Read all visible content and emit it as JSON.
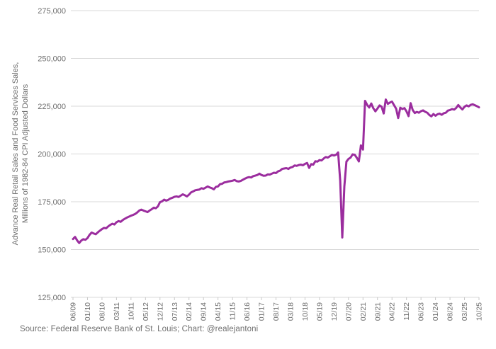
{
  "footer": {
    "source": "Source: Federal Reserve Bank of St. Louis; Chart: @realejantoni"
  },
  "colors": {
    "line": "#9B2D9E",
    "grid": "#D9D9D9",
    "axis_text": "#6E6E6E"
  },
  "chart_data": {
    "type": "line",
    "title": "",
    "ylabel_line1": "Advance Real Retail Sales and Food Services Sales,",
    "ylabel_line2": "Millions of 1982-84 CPI Adjusted Dollars",
    "x_start_month": "2009-06",
    "x_end_month": "2025-10",
    "x_tick_every_months": 7,
    "x_tick_labels": [
      "06/09",
      "01/10",
      "08/10",
      "03/11",
      "10/11",
      "05/12",
      "12/12",
      "07/13",
      "02/14",
      "09/14",
      "04/15",
      "11/15",
      "06/16",
      "01/17",
      "08/17",
      "03/18",
      "10/18",
      "05/19",
      "12/19",
      "07/20",
      "02/21",
      "09/21",
      "04/22",
      "11/22",
      "06/23",
      "01/24",
      "08/24",
      "03/25",
      "10/25"
    ],
    "y_ticks": [
      125000,
      150000,
      175000,
      200000,
      225000,
      250000,
      275000
    ],
    "ylim": [
      125000,
      275000
    ],
    "grid": "horizontal-only",
    "legend": "none",
    "series": [
      {
        "name": "real-retail-and-food-services-sales",
        "values": [
          155500,
          156600,
          154800,
          153400,
          154700,
          155400,
          155100,
          156000,
          157700,
          158900,
          158400,
          158000,
          159000,
          159900,
          160700,
          161300,
          161100,
          162100,
          162900,
          163500,
          163100,
          164300,
          164900,
          164500,
          165400,
          166100,
          166700,
          167200,
          167700,
          168100,
          168600,
          169400,
          170400,
          170900,
          170400,
          170000,
          169600,
          170400,
          171100,
          171900,
          171600,
          172600,
          174800,
          175200,
          176100,
          175600,
          176000,
          176700,
          177100,
          177600,
          177800,
          177500,
          178200,
          178900,
          178400,
          177800,
          178700,
          179900,
          180400,
          181000,
          181200,
          181400,
          182100,
          181800,
          182400,
          183000,
          182500,
          182100,
          181500,
          182800,
          183000,
          184200,
          184400,
          185100,
          185300,
          185600,
          185800,
          186000,
          186400,
          185800,
          185600,
          185900,
          186500,
          187100,
          187600,
          187900,
          187700,
          188400,
          188700,
          189000,
          189700,
          189000,
          188600,
          188700,
          189300,
          189200,
          189700,
          190200,
          190000,
          190900,
          191300,
          192200,
          192400,
          192600,
          192200,
          192900,
          193200,
          194000,
          193800,
          194200,
          194400,
          194100,
          194800,
          195300,
          192700,
          194700,
          194400,
          196200,
          196000,
          196800,
          196600,
          197600,
          198400,
          198100,
          198800,
          199500,
          199200,
          199600,
          200800,
          186000,
          156300,
          183000,
          196000,
          197400,
          198100,
          199800,
          199600,
          198000,
          196100,
          204500,
          202300,
          227800,
          225700,
          224300,
          226400,
          223900,
          222300,
          223800,
          225400,
          224700,
          221200,
          228500,
          226200,
          226900,
          227400,
          225500,
          223700,
          218800,
          224200,
          223500,
          224000,
          222300,
          219800,
          226600,
          223000,
          221400,
          222000,
          221600,
          222400,
          222800,
          222100,
          221600,
          220400,
          219700,
          220900,
          220000,
          220800,
          221100,
          220500,
          221300,
          221600,
          222700,
          223000,
          223500,
          223200,
          224100,
          225600,
          224300,
          223300,
          224700,
          225400,
          224900,
          225700,
          226000,
          225500,
          225000,
          224400
        ]
      }
    ]
  }
}
